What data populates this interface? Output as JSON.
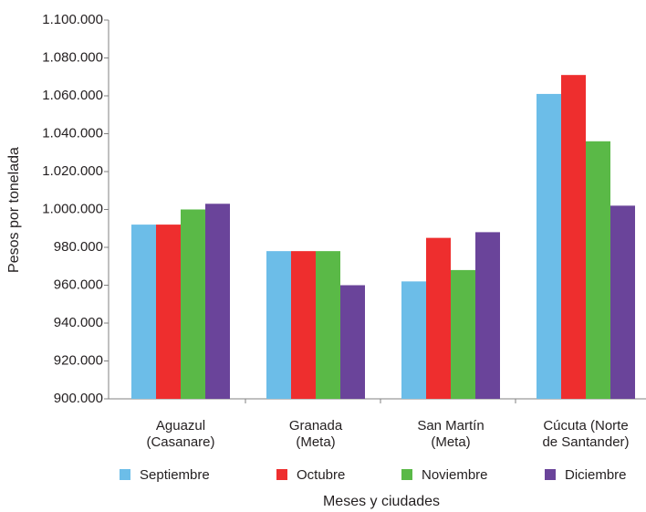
{
  "chart_data": {
    "type": "bar",
    "ylabel": "Pesos por tonelada",
    "xlabel": "Meses y ciudades",
    "categories": [
      [
        "Aguazul",
        "(Casanare)"
      ],
      [
        "Granada",
        "(Meta)"
      ],
      [
        "San Martín",
        "(Meta)"
      ],
      [
        "Cúcuta (Norte",
        "de Santander)"
      ]
    ],
    "series": [
      {
        "name": "Septiembre",
        "color": "#6cbde8",
        "values": [
          992000,
          978000,
          962000,
          1061000
        ]
      },
      {
        "name": "Octubre",
        "color": "#ee2e2e",
        "values": [
          992000,
          978000,
          985000,
          1071000
        ]
      },
      {
        "name": "Noviembre",
        "color": "#5ab947",
        "values": [
          1000000,
          978000,
          968000,
          1036000
        ]
      },
      {
        "name": "Diciembre",
        "color": "#6a449a",
        "values": [
          1003000,
          960000,
          988000,
          1002000
        ]
      }
    ],
    "ylim": [
      900000,
      1100000
    ],
    "yticks": [
      {
        "value": 900000,
        "label": "900.000"
      },
      {
        "value": 920000,
        "label": "920.000"
      },
      {
        "value": 940000,
        "label": "940.000"
      },
      {
        "value": 960000,
        "label": "960.000"
      },
      {
        "value": 980000,
        "label": "980.000"
      },
      {
        "value": 1000000,
        "label": "1.000.000"
      },
      {
        "value": 1020000,
        "label": "1.020.000"
      },
      {
        "value": 1040000,
        "label": "1.040.000"
      },
      {
        "value": 1060000,
        "label": "1.060.000"
      },
      {
        "value": 1080000,
        "label": "1.080.000"
      },
      {
        "value": 1100000,
        "label": "1.100.000"
      }
    ],
    "grid": false,
    "legend": "bottom"
  }
}
